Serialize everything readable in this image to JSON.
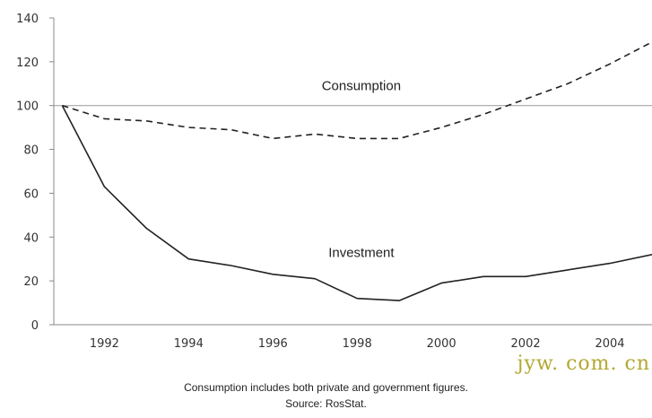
{
  "chart_data": {
    "type": "line",
    "ylim": [
      0,
      140
    ],
    "xlim": [
      1990.8,
      2005
    ],
    "y_ticks": [
      0,
      20,
      40,
      60,
      80,
      100,
      120,
      140
    ],
    "x_ticks": [
      1992,
      1994,
      1996,
      1998,
      2000,
      2002,
      2004
    ],
    "reference_line": 100,
    "grid": false,
    "series": [
      {
        "name": "Consumption",
        "style": "dashed",
        "color": "#222222",
        "x": [
          1991,
          1992,
          1993,
          1994,
          1995,
          1996,
          1997,
          1998,
          1999,
          2000,
          2001,
          2002,
          2003,
          2004,
          2005
        ],
        "y": [
          100,
          94,
          93,
          90,
          89,
          85,
          87,
          85,
          85,
          90,
          96,
          103,
          110,
          119,
          129
        ]
      },
      {
        "name": "Investment",
        "style": "solid",
        "color": "#222222",
        "x": [
          1991,
          1992,
          1993,
          1994,
          1995,
          1996,
          1997,
          1998,
          1999,
          2000,
          2001,
          2002,
          2003,
          2004,
          2005
        ],
        "y": [
          100,
          63,
          44,
          30,
          27,
          23,
          21,
          12,
          11,
          19,
          22,
          22,
          25,
          28,
          32
        ]
      }
    ]
  },
  "notes": {
    "line1": "Consumption includes both private and government figures.",
    "line2": "Source: RosStat."
  },
  "watermark": "jyw. com. cn"
}
